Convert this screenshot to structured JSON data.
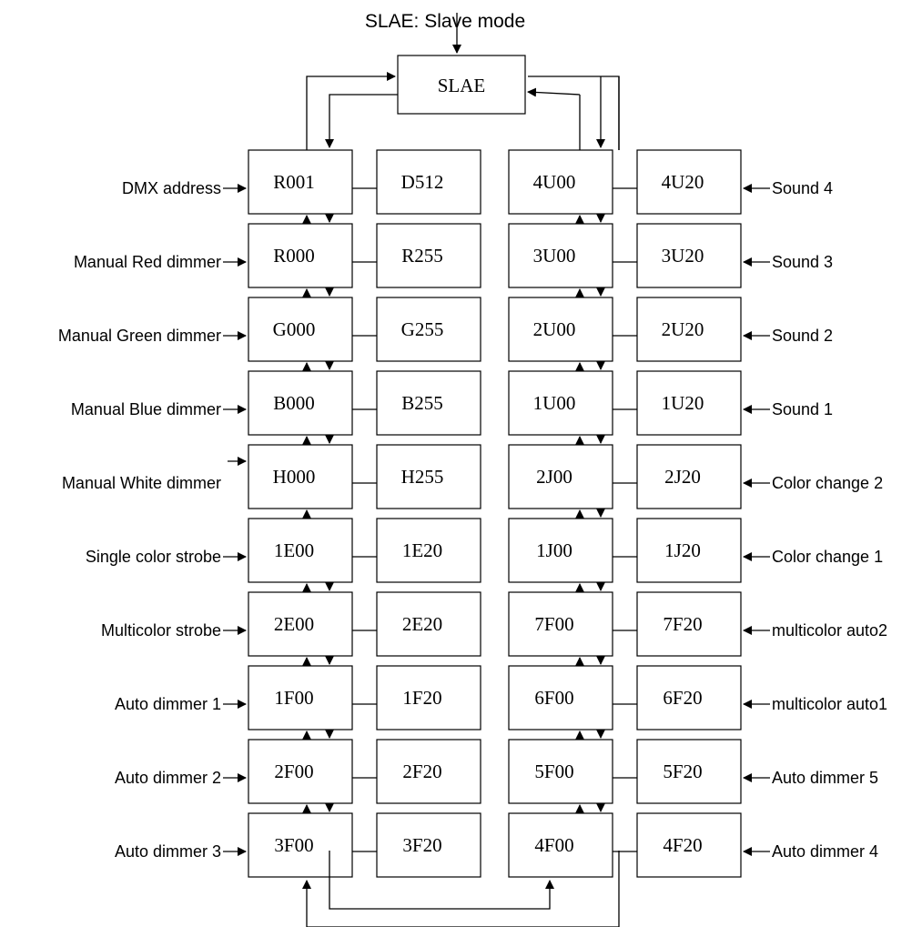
{
  "title": "SLAE: Slave mode",
  "top_box": "SLAE",
  "left_labels": [
    "DMX address",
    "Manual Red dimmer",
    "Manual Green dimmer",
    "Manual Blue dimmer",
    "Manual White dimmer",
    "Single color strobe",
    "Multicolor strobe",
    "Auto dimmer 1",
    "Auto dimmer 2",
    "Auto dimmer 3"
  ],
  "right_labels": [
    "Sound 4",
    "Sound 3",
    "Sound 2",
    "Sound 1",
    "Color change 2",
    "Color change 1",
    "multicolor auto2",
    "multicolor auto1",
    "Auto dimmer 5",
    "Auto dimmer 4"
  ],
  "col1": [
    "R001",
    "R000",
    "G000",
    "B000",
    "H000",
    "1E00",
    "2E00",
    "1F00",
    "2F00",
    "3F00"
  ],
  "col2": [
    "D512",
    "R255",
    "G255",
    "B255",
    "H255",
    "1E20",
    "2E20",
    "1F20",
    "2F20",
    "3F20"
  ],
  "col3": [
    "4U00",
    "3U00",
    "2U00",
    "1U00",
    "2J00",
    "1J00",
    "7F00",
    "6F00",
    "5F00",
    "4F00"
  ],
  "col4": [
    "4U20",
    "3U20",
    "2U20",
    "1U20",
    "2J20",
    "1J20",
    "7F20",
    "6F20",
    "5F20",
    "4F20"
  ]
}
